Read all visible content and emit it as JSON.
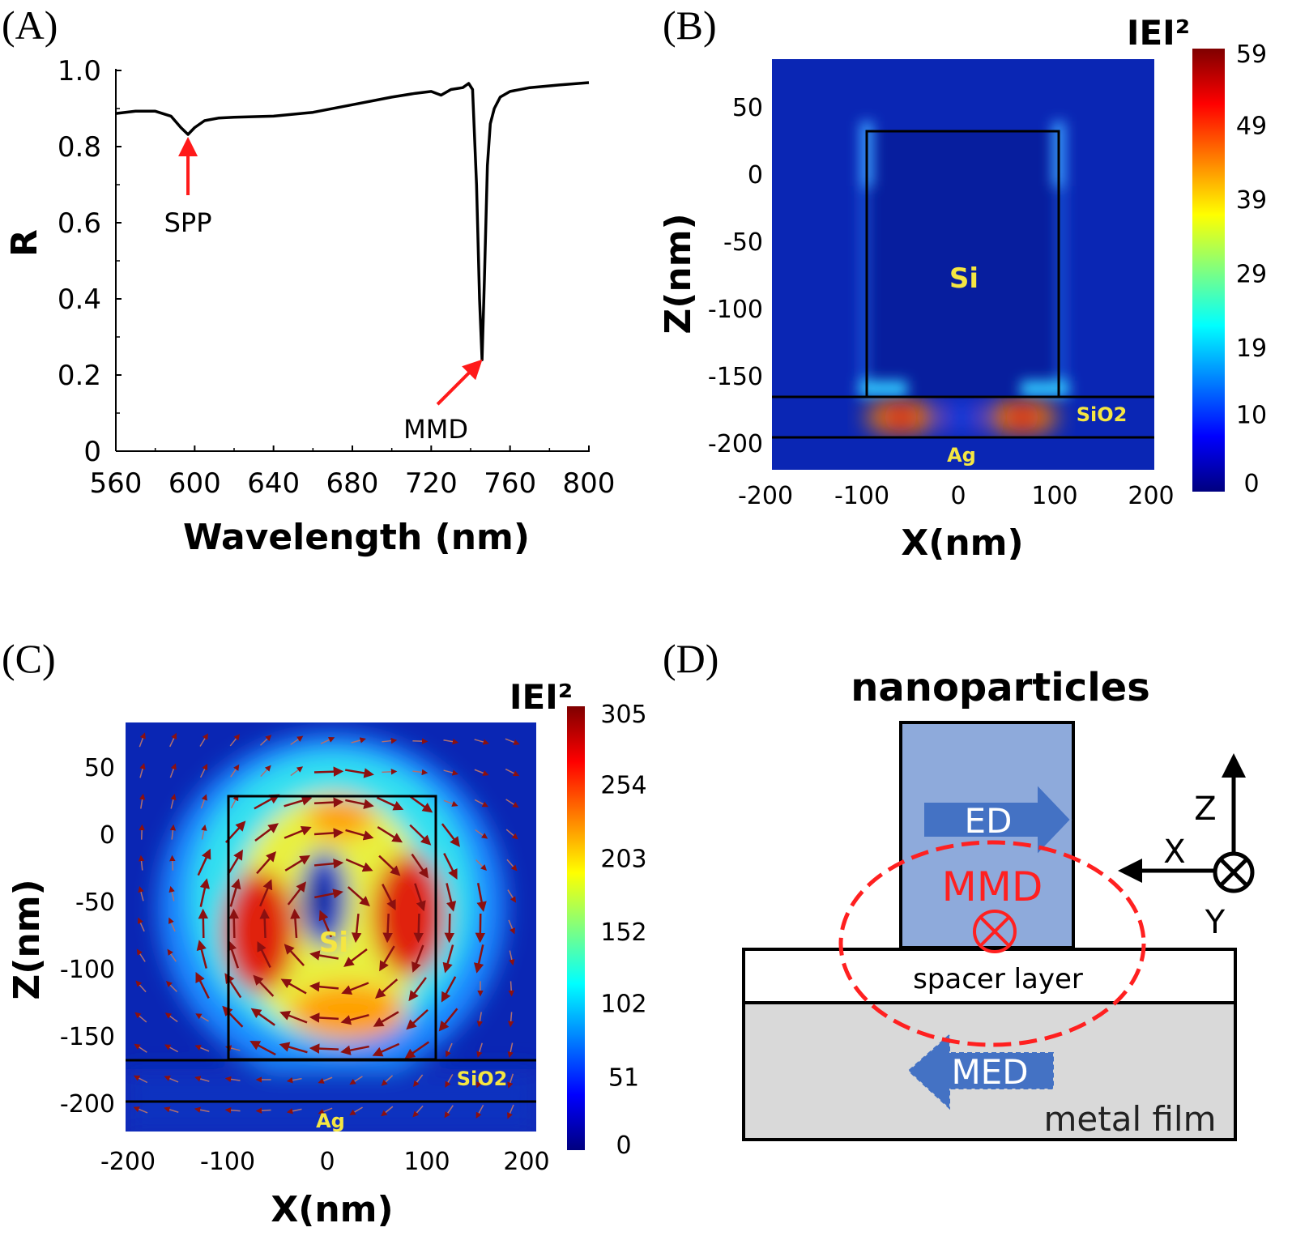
{
  "panels": {
    "a": {
      "label": "(A)"
    },
    "b": {
      "label": "(B)"
    },
    "c": {
      "label": "(C)"
    },
    "d": {
      "label": "(D)"
    }
  },
  "chart_data": [
    {
      "type": "line",
      "panel": "A",
      "xlabel": "Wavelength (nm)",
      "ylabel": "R",
      "xlim": [
        560,
        800
      ],
      "ylim": [
        0,
        1.0
      ],
      "xticks": [
        "560",
        "600",
        "640",
        "680",
        "720",
        "760",
        "800"
      ],
      "yticks": [
        "0",
        "0.2",
        "0.4",
        "0.6",
        "0.8",
        "1.0"
      ],
      "grid": false,
      "line_color": "#000000",
      "x": [
        560,
        570,
        580,
        588,
        593,
        596.6,
        600,
        605,
        612,
        620,
        640,
        660,
        680,
        700,
        712,
        720,
        725,
        730,
        736,
        739,
        741,
        743,
        744.5,
        745.8,
        747,
        748.5,
        750,
        752,
        755,
        760,
        770,
        785,
        800
      ],
      "y": [
        0.887,
        0.893,
        0.893,
        0.88,
        0.85,
        0.832,
        0.85,
        0.868,
        0.875,
        0.877,
        0.88,
        0.89,
        0.91,
        0.93,
        0.94,
        0.945,
        0.935,
        0.95,
        0.955,
        0.966,
        0.95,
        0.7,
        0.4,
        0.24,
        0.45,
        0.75,
        0.86,
        0.9,
        0.93,
        0.945,
        0.955,
        0.962,
        0.968
      ],
      "annotations": [
        {
          "text": "SPP",
          "x": 596.6,
          "y": 0.832,
          "arrow_color": "#ff1a1a"
        },
        {
          "text": "MMD",
          "x": 745.8,
          "y": 0.24,
          "arrow_color": "#ff1a1a"
        }
      ]
    },
    {
      "type": "heatmap",
      "panel": "B",
      "title": "IEI²",
      "xlabel": "X(nm)",
      "ylabel": "Z(nm)",
      "xlim": [
        -200,
        200
      ],
      "ylim": [
        -220,
        85
      ],
      "xticks": [
        "-200",
        "-100",
        "0",
        "100",
        "200"
      ],
      "yticks": [
        "50",
        "0",
        "-50",
        "-100",
        "-150",
        "-200"
      ],
      "colorbar": {
        "min": 0,
        "max": 59,
        "ticks": [
          "59",
          "49",
          "39",
          "29",
          "19",
          "10",
          "0"
        ],
        "colormap": "jet"
      },
      "region_labels": {
        "si": "Si",
        "sio2": "SiO2",
        "ag": "Ag"
      },
      "structure": {
        "si_x": [
          -100,
          100
        ],
        "si_z": [
          30,
          -166
        ],
        "sio2_top": -166,
        "ag_top": -196
      }
    },
    {
      "type": "heatmap",
      "panel": "C",
      "title": "IEI²",
      "xlabel": "X(nm)",
      "ylabel": "Z(nm)",
      "xlim": [
        -200,
        200
      ],
      "ylim": [
        -225,
        85
      ],
      "xticks": [
        "-200",
        "-100",
        "0",
        "100",
        "200"
      ],
      "yticks": [
        "50",
        "0",
        "-50",
        "-100",
        "-150",
        "-200"
      ],
      "colorbar": {
        "min": 0,
        "max": 305,
        "ticks": [
          "305",
          "254",
          "203",
          "152",
          "102",
          "51",
          "0"
        ],
        "colormap": "jet"
      },
      "region_labels": {
        "si": "Si",
        "sio2": "SiO2",
        "ag": "Ag"
      },
      "structure": {
        "si_x": [
          -100,
          100
        ],
        "si_z": [
          27,
          -169
        ],
        "sio2_top": -169,
        "ag_top": -200
      },
      "overlay": "field vector arrows (circulating)"
    }
  ],
  "diagram": {
    "title": "nanoparticles",
    "ed_label": "ED",
    "mmd_label": "MMD",
    "med_label": "MED",
    "spacer_label": "spacer layer",
    "metal_label": "metal film",
    "axis_z": "Z",
    "axis_x": "X",
    "axis_y": "Y",
    "colors": {
      "particle": "#8eaadb",
      "arrow": "#4472c4",
      "metal": "#d9d9d9",
      "mmd": "#ff2020"
    }
  }
}
